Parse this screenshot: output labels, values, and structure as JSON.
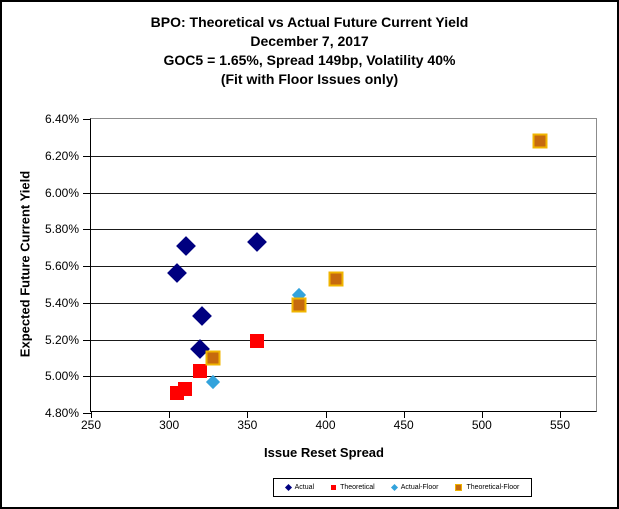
{
  "header": {
    "title": "BPO: Theoretical vs Actual Future Current Yield",
    "subtitle_date": "December 7, 2017",
    "subtitle_params": "GOC5 = 1.65%, Spread 149bp, Volatility 40%",
    "subtitle_note": "(Fit with Floor Issues only)"
  },
  "chart_data": {
    "type": "scatter",
    "title": "BPO: Theoretical vs Actual Future Current Yield",
    "subtitles": [
      "December 7, 2017",
      "GOC5 = 1.65%, Spread 149bp, Volatility 40%",
      "(Fit with Floor Issues only)"
    ],
    "xlabel": "Issue Reset Spread",
    "ylabel": "Expected Future Current Yield",
    "xlim": [
      250,
      550
    ],
    "ylim": [
      4.8,
      6.4
    ],
    "x_ticks": [
      250,
      300,
      350,
      400,
      450,
      500,
      550
    ],
    "y_ticks": [
      6.4,
      6.2,
      6.0,
      5.8,
      5.6,
      5.4,
      5.2,
      5.0,
      4.8
    ],
    "y_tick_labels": [
      "6.40%",
      "6.20%",
      "6.00%",
      "5.80%",
      "5.60%",
      "5.40%",
      "5.20%",
      "5.00%",
      "4.80%"
    ],
    "grid": "horizontal",
    "legend_position": "bottom-center",
    "series": [
      {
        "name": "Actual",
        "marker": "diamond",
        "color": "#000080",
        "points": [
          [
            305,
            5.56
          ],
          [
            311,
            5.71
          ],
          [
            320,
            5.15
          ],
          [
            321,
            5.33
          ],
          [
            356,
            5.73
          ]
        ]
      },
      {
        "name": "Theoretical",
        "marker": "square",
        "color": "#FF0000",
        "points": [
          [
            305,
            4.91
          ],
          [
            310,
            4.93
          ],
          [
            320,
            5.03
          ],
          [
            356,
            5.19
          ]
        ]
      },
      {
        "name": "Actual-Floor",
        "marker": "diamond",
        "color": "#33A3DC",
        "points": [
          [
            328,
            4.97
          ],
          [
            383,
            5.44
          ]
        ]
      },
      {
        "name": "Theoretical-Floor",
        "marker": "square",
        "color": "#C66A0E",
        "border_color": "#F0B400",
        "points": [
          [
            328,
            5.1
          ],
          [
            383,
            5.39
          ],
          [
            407,
            5.53
          ],
          [
            537,
            6.28
          ]
        ]
      }
    ]
  }
}
